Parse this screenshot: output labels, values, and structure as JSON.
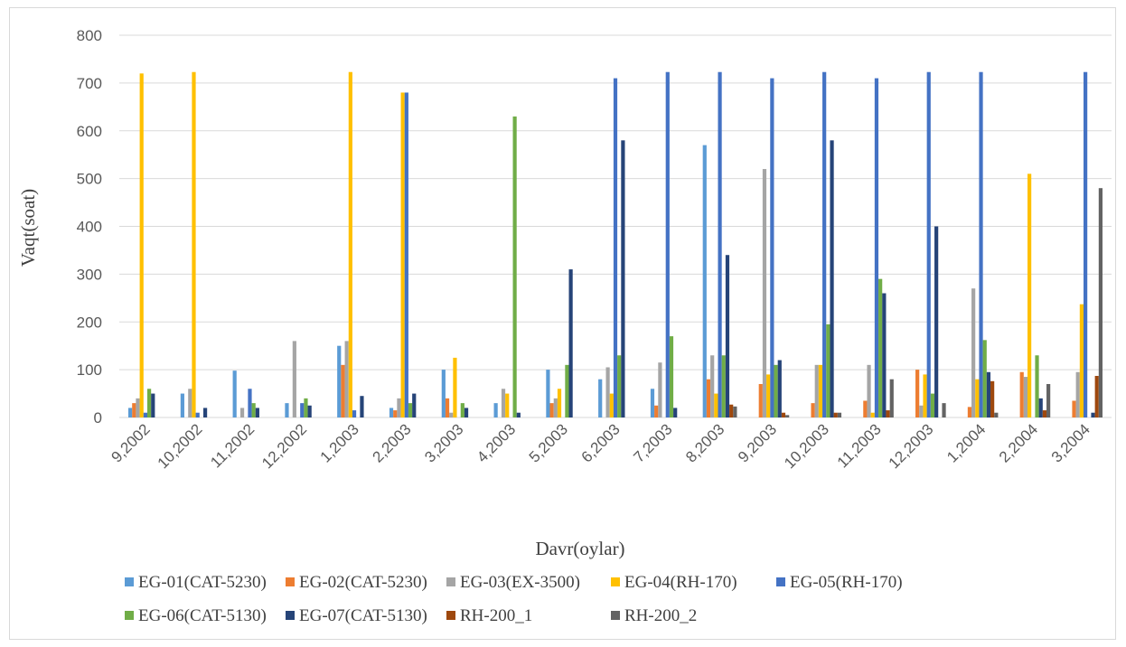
{
  "chart_data": {
    "type": "bar",
    "title": "",
    "xlabel": "Davr(oylar)",
    "ylabel": "Vaqt(soat)",
    "ylim": [
      0,
      800
    ],
    "yticks": [
      0,
      100,
      200,
      300,
      400,
      500,
      600,
      700,
      800
    ],
    "grid": true,
    "legend_position": "bottom",
    "categories": [
      "9,2002",
      "10,2002",
      "11,2002",
      "12,2002",
      "1,2003",
      "2,2003",
      "3,2003",
      "4,2003",
      "5,2003",
      "6,2003",
      "7,2003",
      "8,2003",
      "9,2003",
      "10,2003",
      "11,2003",
      "12,2003",
      "1,2004",
      "2,2004",
      "3,2004"
    ],
    "series": [
      {
        "name": "EG-01(CAT-5230)",
        "color": "#5b9bd5",
        "values": [
          20,
          50,
          98,
          30,
          150,
          20,
          100,
          30,
          100,
          80,
          60,
          570,
          0,
          0,
          0,
          0,
          0,
          0,
          0
        ]
      },
      {
        "name": "EG-02(CAT-5230)",
        "color": "#ed7d31",
        "values": [
          30,
          0,
          0,
          0,
          110,
          15,
          40,
          0,
          30,
          0,
          25,
          80,
          70,
          30,
          35,
          100,
          22,
          95,
          35
        ]
      },
      {
        "name": "EG-03(EX-3500)",
        "color": "#a5a5a5",
        "values": [
          40,
          60,
          20,
          160,
          160,
          40,
          10,
          60,
          40,
          105,
          115,
          130,
          520,
          110,
          110,
          25,
          270,
          85,
          95
        ]
      },
      {
        "name": "EG-04(RH-170)",
        "color": "#ffc000",
        "values": [
          720,
          723,
          0,
          0,
          723,
          680,
          125,
          50,
          60,
          50,
          0,
          50,
          90,
          110,
          10,
          90,
          80,
          510,
          237
        ]
      },
      {
        "name": "EG-05(RH-170)",
        "color": "#4472c4",
        "values": [
          10,
          10,
          60,
          30,
          15,
          680,
          0,
          0,
          0,
          710,
          723,
          723,
          710,
          723,
          710,
          723,
          723,
          0,
          723
        ]
      },
      {
        "name": "EG-06(CAT-5130)",
        "color": "#70ad47",
        "values": [
          60,
          0,
          30,
          40,
          0,
          30,
          30,
          630,
          110,
          130,
          170,
          130,
          110,
          195,
          290,
          50,
          162,
          130,
          0
        ]
      },
      {
        "name": "EG-07(CAT-5130)",
        "color": "#264478",
        "values": [
          50,
          20,
          20,
          25,
          45,
          50,
          20,
          10,
          310,
          580,
          20,
          340,
          120,
          580,
          260,
          400,
          95,
          40,
          10
        ]
      },
      {
        "name": "RH-200_1",
        "color": "#9e480e",
        "values": [
          0,
          0,
          0,
          0,
          0,
          0,
          0,
          0,
          0,
          0,
          0,
          27,
          10,
          10,
          15,
          0,
          76,
          15,
          87
        ]
      },
      {
        "name": "RH-200_2",
        "color": "#636363",
        "values": [
          0,
          0,
          0,
          0,
          0,
          0,
          0,
          0,
          0,
          0,
          0,
          23,
          5,
          10,
          80,
          30,
          10,
          70,
          480
        ]
      }
    ]
  }
}
